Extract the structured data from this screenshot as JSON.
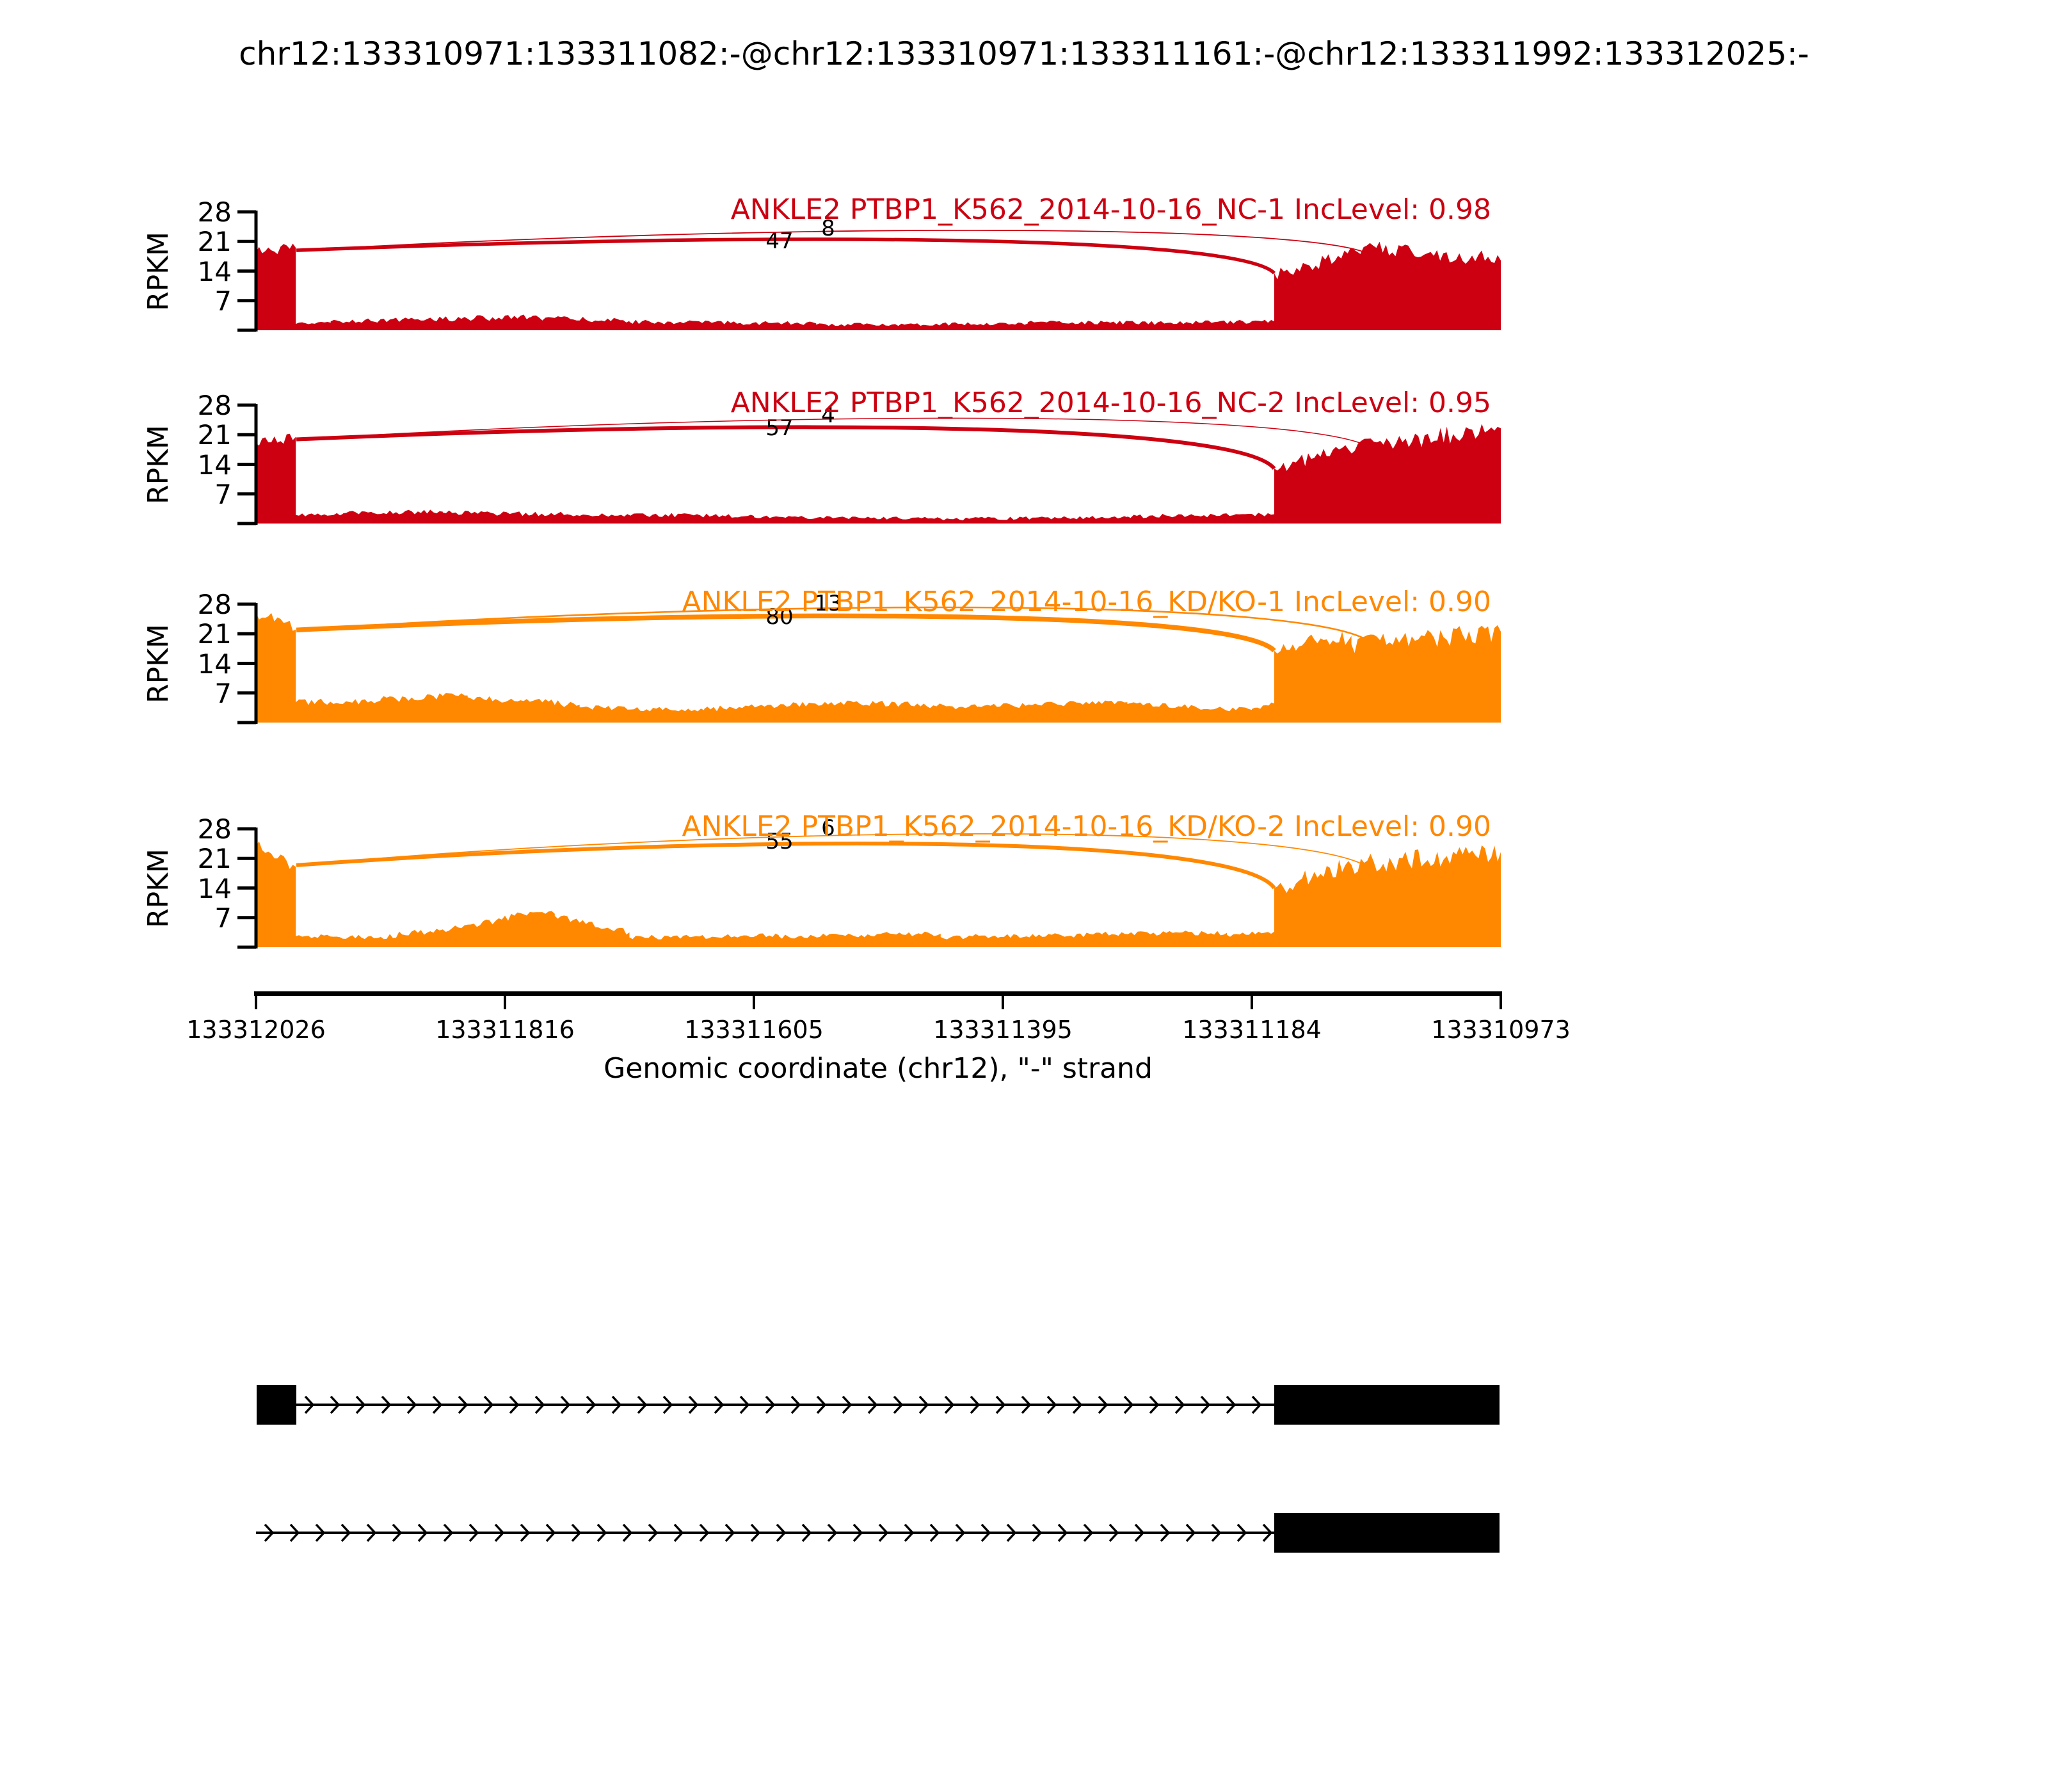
{
  "title": "chr12:133310971:133311082:-@chr12:133310971:133311161:-@chr12:133311992:133312025:-",
  "x_axis": {
    "label": "Genomic coordinate (chr12), \"-\" strand",
    "tick_labels": [
      "133312026",
      "133311816",
      "133311605",
      "133311395",
      "133311184",
      "133310973"
    ]
  },
  "y_axis": {
    "label": "RPKM",
    "tick_labels": [
      "7",
      "14",
      "21",
      "28"
    ]
  },
  "colors": {
    "group1": "#CC0011",
    "group2": "#FF8800",
    "axis": "#000000",
    "exon": "#000000",
    "junction_count_text": "#000000"
  },
  "chart_data": {
    "type": "area",
    "subtype": "sashimi-splice-junction-plot",
    "gene": "ANKLE2",
    "strand": "-",
    "x_reversed": true,
    "xlim": [
      133312026,
      133310973
    ],
    "x_ticks": [
      133312026,
      133311816,
      133311605,
      133311395,
      133311184,
      133310973
    ],
    "ylim": [
      0,
      28
    ],
    "y_ticks": [
      7,
      14,
      21,
      28
    ],
    "tracks": [
      {
        "label": "ANKLE2 PTBP1_K562_2014-10-16_NC-1 IncLevel: 0.98",
        "sample": "PTBP1_K562_2014-10-16_NC-1",
        "inc_level": 0.98,
        "color": "#CC0011",
        "start_rpkm": 19.5,
        "junctions": [
          {
            "count": 47,
            "from_f": 0.0324,
            "to_f": 0.818,
            "apex_rpkm": 23.0,
            "thickness": 5.5,
            "end_rpkm": 13.5
          },
          {
            "count": 8,
            "from_f": 0.0324,
            "to_f": 0.897,
            "apex_rpkm": 25.5,
            "thickness": 1.8,
            "end_rpkm": 17.5
          }
        ],
        "coverage_segments": [
          [
            0.0,
            0.032,
            18.5,
            19.5,
            1.2
          ],
          [
            0.032,
            0.06,
            1.5,
            1.8,
            0.35
          ],
          [
            0.06,
            0.13,
            2.1,
            2.6,
            0.55
          ],
          [
            0.13,
            0.22,
            2.6,
            3.1,
            0.7
          ],
          [
            0.22,
            0.3,
            3.0,
            2.2,
            0.6
          ],
          [
            0.3,
            0.45,
            2.0,
            1.6,
            0.5
          ],
          [
            0.45,
            0.62,
            1.3,
            1.6,
            0.4
          ],
          [
            0.62,
            0.75,
            1.9,
            1.7,
            0.5
          ],
          [
            0.75,
            0.818,
            1.8,
            2.1,
            0.45
          ],
          [
            0.818,
            0.9,
            13.5,
            19.5,
            1.7
          ],
          [
            0.9,
            1.0,
            19.5,
            16.5,
            1.9
          ]
        ]
      },
      {
        "label": "ANKLE2 PTBP1_K562_2014-10-16_NC-2 IncLevel: 0.95",
        "sample": "PTBP1_K562_2014-10-16_NC-2",
        "inc_level": 0.95,
        "color": "#CC0011",
        "start_rpkm": 20.5,
        "junctions": [
          {
            "count": 57,
            "from_f": 0.0324,
            "to_f": 0.818,
            "apex_rpkm": 24.5,
            "thickness": 6.0,
            "end_rpkm": 13.0
          },
          {
            "count": 4,
            "from_f": 0.0324,
            "to_f": 0.897,
            "apex_rpkm": 27.0,
            "thickness": 1.5,
            "end_rpkm": 17.5
          }
        ],
        "coverage_segments": [
          [
            0.0,
            0.032,
            19.0,
            20.5,
            1.3
          ],
          [
            0.032,
            0.07,
            2.0,
            2.3,
            0.4
          ],
          [
            0.07,
            0.15,
            2.4,
            2.8,
            0.6
          ],
          [
            0.15,
            0.25,
            2.6,
            2.2,
            0.6
          ],
          [
            0.25,
            0.4,
            2.2,
            1.8,
            0.5
          ],
          [
            0.4,
            0.55,
            1.5,
            1.2,
            0.4
          ],
          [
            0.55,
            0.7,
            1.1,
            1.5,
            0.4
          ],
          [
            0.7,
            0.818,
            1.7,
            2.2,
            0.5
          ],
          [
            0.818,
            0.87,
            13.0,
            17.5,
            1.8
          ],
          [
            0.87,
            1.0,
            17.5,
            22.5,
            2.1
          ]
        ]
      },
      {
        "label": "ANKLE2 PTBP1_K562_2014-10-16_KD/KO-1 IncLevel: 0.90",
        "sample": "PTBP1_K562_2014-10-16_KD/KO-1",
        "inc_level": 0.9,
        "color": "#FF8800",
        "start_rpkm": 22.5,
        "junctions": [
          {
            "count": 80,
            "from_f": 0.0324,
            "to_f": 0.818,
            "apex_rpkm": 27.0,
            "thickness": 7.5,
            "end_rpkm": 17.0
          },
          {
            "count": 13,
            "from_f": 0.0324,
            "to_f": 0.897,
            "apex_rpkm": 29.5,
            "thickness": 2.6,
            "end_rpkm": 18.5
          }
        ],
        "coverage_segments": [
          [
            0.0,
            0.032,
            26.0,
            22.0,
            1.6
          ],
          [
            0.032,
            0.1,
            4.8,
            5.2,
            0.8
          ],
          [
            0.1,
            0.17,
            5.4,
            6.4,
            0.9
          ],
          [
            0.17,
            0.26,
            6.0,
            4.2,
            0.8
          ],
          [
            0.26,
            0.36,
            3.6,
            2.9,
            0.6
          ],
          [
            0.36,
            0.48,
            3.2,
            4.8,
            0.7
          ],
          [
            0.48,
            0.58,
            4.8,
            3.6,
            0.7
          ],
          [
            0.58,
            0.7,
            3.8,
            4.8,
            0.7
          ],
          [
            0.7,
            0.8,
            4.4,
            3.0,
            0.6
          ],
          [
            0.8,
            0.818,
            3.2,
            4.5,
            0.5
          ],
          [
            0.818,
            0.88,
            17.0,
            20.5,
            2.2
          ],
          [
            0.88,
            1.0,
            18.5,
            21.5,
            2.4
          ]
        ]
      },
      {
        "label": "ANKLE2 PTBP1_K562_2014-10-16_KD/KO-2 IncLevel: 0.90",
        "sample": "PTBP1_K562_2014-10-16_KD/KO-2",
        "inc_level": 0.9,
        "color": "#FF8800",
        "start_rpkm": 20.0,
        "junctions": [
          {
            "count": 55,
            "from_f": 0.0324,
            "to_f": 0.818,
            "apex_rpkm": 27.0,
            "thickness": 6.0,
            "end_rpkm": 14.0
          },
          {
            "count": 6,
            "from_f": 0.0324,
            "to_f": 0.897,
            "apex_rpkm": 29.5,
            "thickness": 1.8,
            "end_rpkm": 18.0
          }
        ],
        "coverage_segments": [
          [
            0.0,
            0.032,
            24.0,
            19.0,
            1.6
          ],
          [
            0.032,
            0.1,
            2.6,
            2.4,
            0.5
          ],
          [
            0.1,
            0.165,
            2.5,
            4.5,
            0.8
          ],
          [
            0.165,
            0.215,
            4.5,
            7.8,
            0.9
          ],
          [
            0.215,
            0.24,
            7.8,
            7.9,
            0.7
          ],
          [
            0.24,
            0.3,
            7.4,
            3.5,
            0.8
          ],
          [
            0.3,
            0.42,
            2.3,
            2.8,
            0.6
          ],
          [
            0.42,
            0.55,
            2.6,
            3.2,
            0.6
          ],
          [
            0.55,
            0.68,
            2.4,
            3.0,
            0.6
          ],
          [
            0.68,
            0.78,
            3.2,
            3.4,
            0.6
          ],
          [
            0.78,
            0.818,
            2.9,
            3.7,
            0.5
          ],
          [
            0.818,
            0.88,
            14.0,
            19.5,
            2.2
          ],
          [
            0.88,
            1.0,
            19.5,
            22.5,
            2.3
          ]
        ]
      }
    ],
    "regions": {
      "flanking_exon_f": [
        0.0005,
        0.0324
      ],
      "long_exon_junction_f": 0.818,
      "short_exon_junction_f": 0.897,
      "exon_right_end_f": 0.999
    },
    "isoforms": [
      {
        "exons_f": [
          [
            0.0005,
            0.0324
          ],
          [
            0.818,
            0.999
          ]
        ],
        "intron_f": [
          0.0324,
          0.818
        ]
      },
      {
        "exons_f": [
          [
            0.818,
            0.999
          ]
        ],
        "intron_f": [
          0.0,
          0.818
        ]
      }
    ]
  }
}
